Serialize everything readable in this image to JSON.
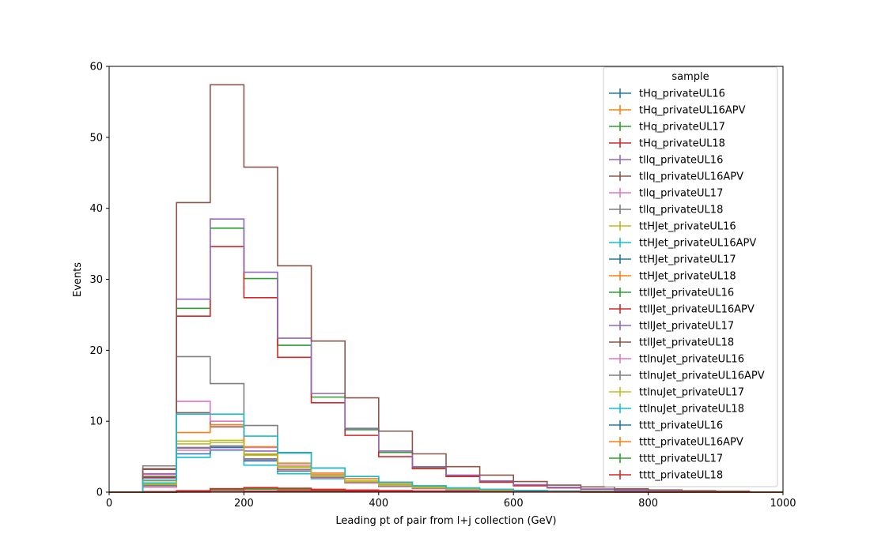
{
  "chart_data": {
    "type": "histogram-step",
    "xlabel": "Leading pt of pair from l+j collection (GeV)",
    "ylabel": "Events",
    "xlim": [
      0,
      1000
    ],
    "ylim": [
      0,
      60
    ],
    "xticks": [
      0,
      200,
      400,
      600,
      800,
      1000
    ],
    "yticks": [
      0,
      10,
      20,
      30,
      40,
      50,
      60
    ],
    "grid": false,
    "legend": {
      "title": "sample",
      "placement": "top-right"
    },
    "bin_edges": [
      0,
      50,
      100,
      150,
      200,
      250,
      300,
      350,
      400,
      450,
      500,
      550,
      600,
      650,
      700,
      750,
      800,
      850,
      900,
      950,
      1000
    ],
    "series": [
      {
        "name": "tHq_privateUL16",
        "color": "#1f77b4",
        "values": [
          0,
          0.05,
          0.1,
          0.3,
          0.4,
          0.35,
          0.25,
          0.2,
          0.15,
          0.1,
          0.08,
          0.05,
          0.04,
          0.03,
          0.02,
          0.02,
          0.01,
          0.01,
          0.01,
          0
        ]
      },
      {
        "name": "tHq_privateUL16APV",
        "color": "#ff7f0e",
        "values": [
          0,
          0.05,
          0.15,
          0.35,
          0.45,
          0.4,
          0.3,
          0.22,
          0.16,
          0.12,
          0.09,
          0.06,
          0.04,
          0.03,
          0.02,
          0.02,
          0.01,
          0.01,
          0.01,
          0
        ]
      },
      {
        "name": "tHq_privateUL17",
        "color": "#2ca02c",
        "values": [
          0,
          0.05,
          0.15,
          0.4,
          0.5,
          0.45,
          0.32,
          0.25,
          0.18,
          0.13,
          0.1,
          0.07,
          0.05,
          0.03,
          0.02,
          0.02,
          0.01,
          0.01,
          0.01,
          0
        ]
      },
      {
        "name": "tHq_privateUL18",
        "color": "#d62728",
        "values": [
          0,
          0.08,
          0.2,
          0.5,
          0.65,
          0.55,
          0.4,
          0.3,
          0.22,
          0.16,
          0.12,
          0.08,
          0.06,
          0.04,
          0.03,
          0.02,
          0.02,
          0.01,
          0.01,
          0
        ]
      },
      {
        "name": "tllq_privateUL16",
        "color": "#9467bd",
        "values": [
          0,
          2.0,
          6.3,
          6.5,
          5.8,
          3.2,
          2.0,
          1.3,
          0.8,
          0.5,
          0.3,
          0.2,
          0.15,
          0.1,
          0.06,
          0.04,
          0.03,
          0.02,
          0.01,
          0
        ]
      },
      {
        "name": "tllq_privateUL16APV",
        "color": "#8c564b",
        "values": [
          0,
          3.2,
          11.2,
          9.2,
          5.3,
          3.5,
          2.3,
          1.5,
          1.0,
          0.6,
          0.4,
          0.25,
          0.15,
          0.1,
          0.07,
          0.05,
          0.03,
          0.02,
          0.01,
          0
        ]
      },
      {
        "name": "tllq_privateUL17",
        "color": "#e377c2",
        "values": [
          0,
          2.5,
          12.8,
          10.0,
          6.3,
          3.8,
          2.5,
          1.6,
          1.0,
          0.6,
          0.4,
          0.25,
          0.15,
          0.1,
          0.07,
          0.05,
          0.03,
          0.02,
          0.01,
          0
        ]
      },
      {
        "name": "tllq_privateUL18",
        "color": "#7f7f7f",
        "values": [
          0,
          3.7,
          19.1,
          15.3,
          9.4,
          5.6,
          3.4,
          2.2,
          1.4,
          0.9,
          0.6,
          0.4,
          0.25,
          0.15,
          0.1,
          0.07,
          0.04,
          0.03,
          0.02,
          0
        ]
      },
      {
        "name": "ttHJet_privateUL16",
        "color": "#bcbd22",
        "values": [
          0,
          1.2,
          7.2,
          7.3,
          5.4,
          3.6,
          2.4,
          1.6,
          1.1,
          0.7,
          0.5,
          0.35,
          0.25,
          0.15,
          0.1,
          0.07,
          0.05,
          0.03,
          0.02,
          0
        ]
      },
      {
        "name": "ttHJet_privateUL16APV",
        "color": "#17becf",
        "values": [
          0,
          1.3,
          4.9,
          5.9,
          3.8,
          2.6,
          1.9,
          1.4,
          0.9,
          0.6,
          0.4,
          0.3,
          0.2,
          0.13,
          0.08,
          0.06,
          0.04,
          0.03,
          0.02,
          0
        ]
      },
      {
        "name": "ttHJet_privateUL17",
        "color": "#1f77b4",
        "values": [
          0,
          1.0,
          5.4,
          6.3,
          4.4,
          3.0,
          2.0,
          1.4,
          1.0,
          0.6,
          0.4,
          0.3,
          0.2,
          0.13,
          0.08,
          0.06,
          0.04,
          0.03,
          0.02,
          0
        ]
      },
      {
        "name": "ttHJet_privateUL18",
        "color": "#ff7f0e",
        "values": [
          0,
          1.6,
          8.4,
          9.5,
          6.4,
          4.1,
          2.7,
          1.9,
          1.3,
          0.85,
          0.55,
          0.38,
          0.25,
          0.16,
          0.1,
          0.07,
          0.05,
          0.03,
          0.02,
          0
        ]
      },
      {
        "name": "ttllJet_privateUL16",
        "color": "#2ca02c",
        "values": [
          0,
          2.2,
          25.9,
          37.2,
          30.1,
          20.7,
          13.4,
          8.8,
          5.6,
          3.5,
          2.3,
          1.5,
          1.0,
          0.65,
          0.42,
          0.28,
          0.18,
          0.12,
          0.08,
          0
        ]
      },
      {
        "name": "ttllJet_privateUL16APV",
        "color": "#d62728",
        "values": [
          0,
          2.1,
          24.8,
          34.6,
          27.4,
          19.0,
          12.6,
          8.0,
          5.0,
          3.3,
          2.2,
          1.4,
          0.9,
          0.6,
          0.4,
          0.26,
          0.17,
          0.11,
          0.07,
          0
        ]
      },
      {
        "name": "ttllJet_privateUL17",
        "color": "#9467bd",
        "values": [
          0,
          2.6,
          27.2,
          38.5,
          31.0,
          21.7,
          13.9,
          9.0,
          5.8,
          3.6,
          2.4,
          1.6,
          1.05,
          0.68,
          0.44,
          0.29,
          0.19,
          0.12,
          0.08,
          0
        ]
      },
      {
        "name": "ttllJet_privateUL18",
        "color": "#8c564b",
        "values": [
          0,
          3.3,
          40.8,
          57.4,
          45.8,
          31.9,
          21.3,
          13.3,
          8.6,
          5.4,
          3.6,
          2.4,
          1.5,
          1.0,
          0.75,
          0.48,
          0.32,
          0.21,
          0.14,
          0
        ]
      },
      {
        "name": "ttlnuJet_privateUL16",
        "color": "#e377c2",
        "values": [
          0,
          0.7,
          5.9,
          6.0,
          4.6,
          3.1,
          2.0,
          1.3,
          0.8,
          0.55,
          0.35,
          0.22,
          0.15,
          0.1,
          0.06,
          0.04,
          0.03,
          0.02,
          0.01,
          0
        ]
      },
      {
        "name": "ttlnuJet_privateUL16APV",
        "color": "#7f7f7f",
        "values": [
          0,
          0.9,
          6.2,
          6.5,
          4.7,
          3.2,
          2.1,
          1.4,
          0.9,
          0.58,
          0.38,
          0.24,
          0.16,
          0.1,
          0.06,
          0.04,
          0.03,
          0.02,
          0.01,
          0
        ]
      },
      {
        "name": "ttlnuJet_privateUL17",
        "color": "#bcbd22",
        "values": [
          0,
          1.1,
          6.8,
          7.0,
          5.2,
          3.5,
          2.3,
          1.5,
          1.0,
          0.63,
          0.41,
          0.27,
          0.17,
          0.11,
          0.07,
          0.05,
          0.03,
          0.02,
          0.01,
          0
        ]
      },
      {
        "name": "ttlnuJet_privateUL18",
        "color": "#17becf",
        "values": [
          0,
          1.7,
          11.0,
          11.0,
          7.9,
          5.5,
          3.4,
          2.2,
          1.4,
          0.9,
          0.58,
          0.38,
          0.25,
          0.16,
          0.1,
          0.07,
          0.04,
          0.03,
          0.02,
          0
        ]
      },
      {
        "name": "tttt_privateUL16",
        "color": "#1f77b4",
        "values": [
          0,
          0,
          0.02,
          0.05,
          0.08,
          0.1,
          0.1,
          0.09,
          0.08,
          0.07,
          0.06,
          0.05,
          0.04,
          0.03,
          0.02,
          0.02,
          0.01,
          0.01,
          0.01,
          0
        ]
      },
      {
        "name": "tttt_privateUL16APV",
        "color": "#ff7f0e",
        "values": [
          0,
          0,
          0.02,
          0.05,
          0.08,
          0.1,
          0.1,
          0.09,
          0.08,
          0.07,
          0.06,
          0.05,
          0.04,
          0.03,
          0.02,
          0.02,
          0.01,
          0.01,
          0.01,
          0
        ]
      },
      {
        "name": "tttt_privateUL17",
        "color": "#2ca02c",
        "values": [
          0,
          0,
          0.03,
          0.06,
          0.1,
          0.12,
          0.12,
          0.11,
          0.1,
          0.08,
          0.07,
          0.06,
          0.05,
          0.04,
          0.03,
          0.02,
          0.02,
          0.01,
          0.01,
          0
        ]
      },
      {
        "name": "tttt_privateUL18",
        "color": "#d62728",
        "values": [
          0,
          0,
          0.04,
          0.08,
          0.13,
          0.16,
          0.16,
          0.15,
          0.13,
          0.11,
          0.09,
          0.08,
          0.06,
          0.05,
          0.04,
          0.03,
          0.02,
          0.02,
          0.01,
          0
        ]
      }
    ]
  }
}
